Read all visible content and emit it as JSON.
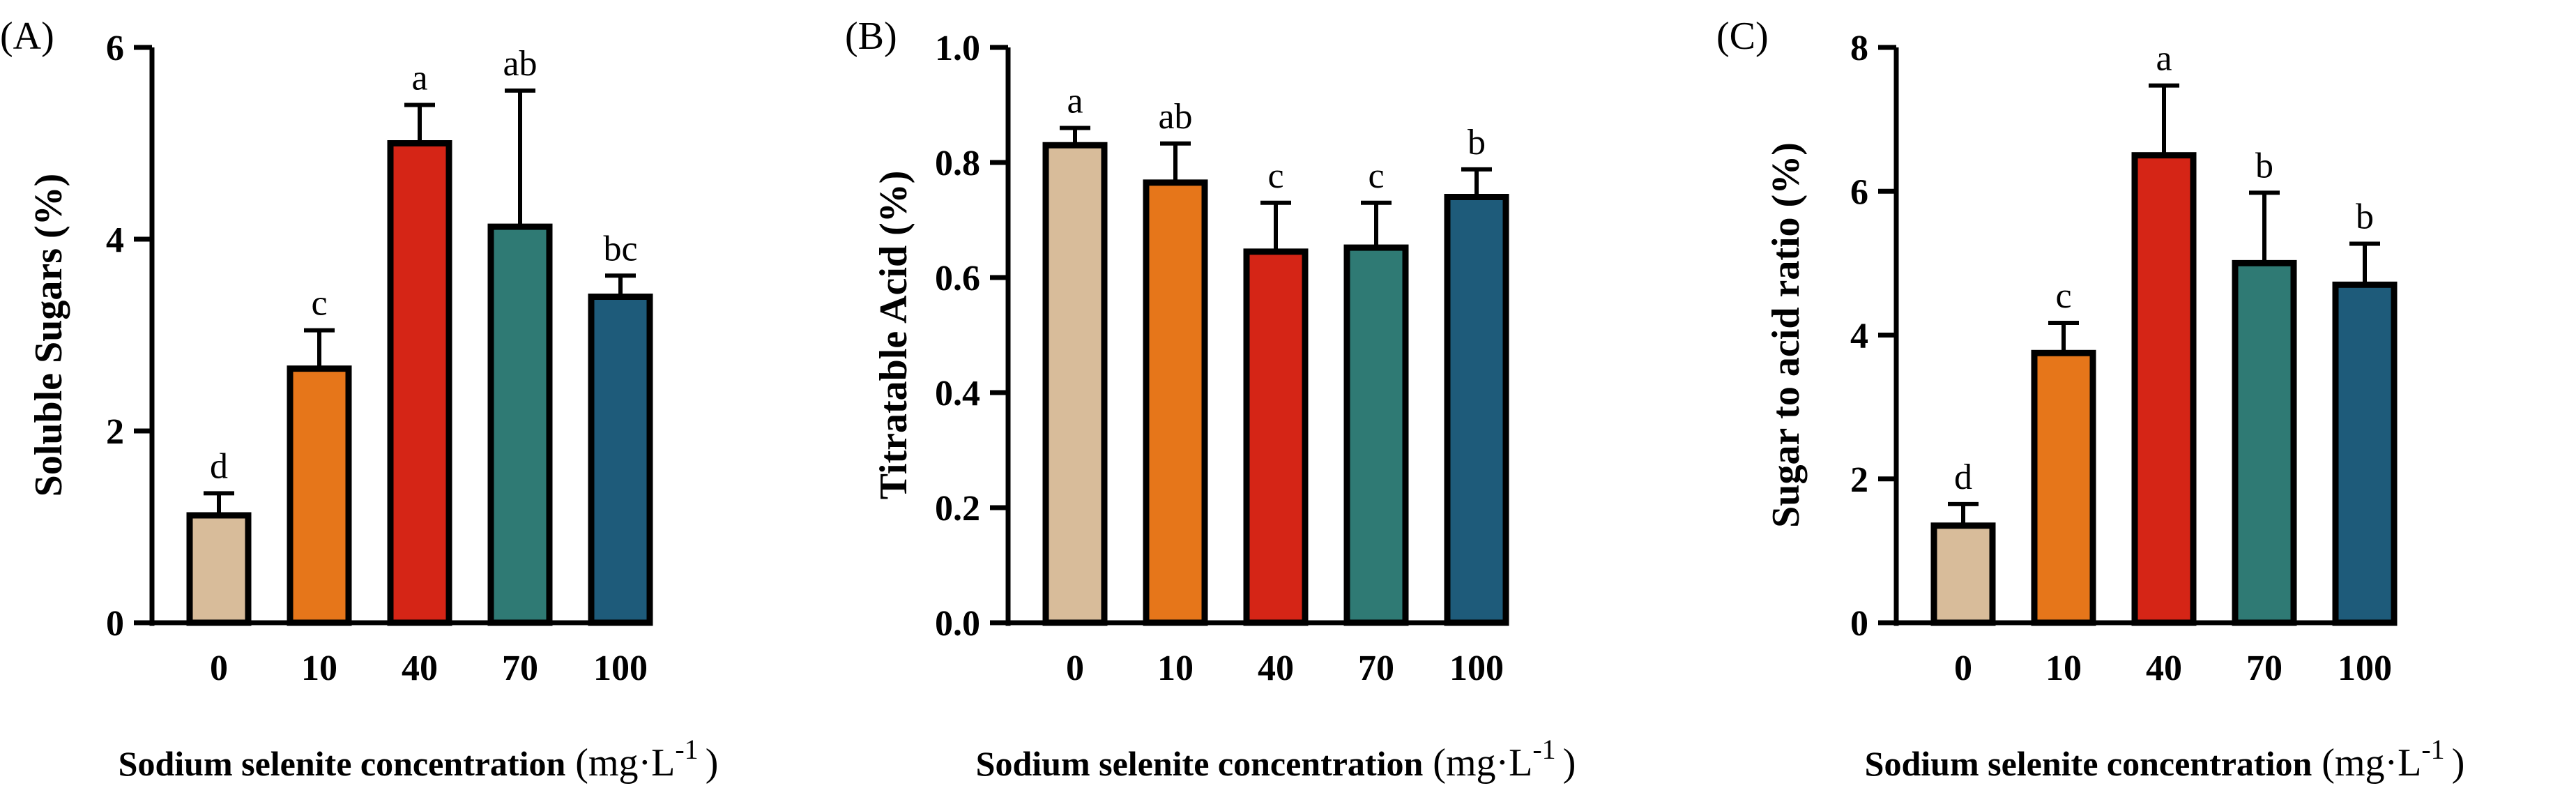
{
  "chart_data": [
    {
      "type": "bar",
      "panel": "(A)",
      "categories": [
        "0",
        "10",
        "40",
        "70",
        "100"
      ],
      "values": [
        1.12,
        2.65,
        5.0,
        4.13,
        3.4
      ],
      "errors": [
        0.23,
        0.4,
        0.4,
        1.42,
        0.22
      ],
      "letters": [
        "d",
        "c",
        "a",
        "ab",
        "bc"
      ],
      "ylabel": "Soluble Sugars (%)",
      "xlabel": "Sodium selenite concentration",
      "xunit_base": "(mg·L",
      "xunit_exp": "-1",
      "xunit_close": ")",
      "ylim": [
        0,
        6
      ],
      "yticks": [
        0,
        2,
        4,
        6
      ],
      "ytick_labels": [
        "0",
        "2",
        "4",
        "6"
      ]
    },
    {
      "type": "bar",
      "panel": "(B)",
      "categories": [
        "0",
        "10",
        "40",
        "70",
        "100"
      ],
      "values": [
        0.83,
        0.765,
        0.645,
        0.652,
        0.74
      ],
      "errors": [
        0.03,
        0.068,
        0.085,
        0.078,
        0.048
      ],
      "letters": [
        "a",
        "ab",
        "c",
        "c",
        "b"
      ],
      "ylabel": "Titratable Acid (%)",
      "xlabel": "Sodium selenite concentration",
      "xunit_base": "(mg·L",
      "xunit_exp": "-1",
      "xunit_close": ")",
      "ylim": [
        0,
        1.0
      ],
      "yticks": [
        0,
        0.2,
        0.4,
        0.6,
        0.8,
        1.0
      ],
      "ytick_labels": [
        "0.0",
        "0.2",
        "0.4",
        "0.6",
        "0.8",
        "1.0"
      ]
    },
    {
      "type": "bar",
      "panel": "(C)",
      "categories": [
        "0",
        "10",
        "40",
        "70",
        "100"
      ],
      "values": [
        1.35,
        3.75,
        6.5,
        5.0,
        4.7
      ],
      "errors": [
        0.3,
        0.42,
        0.97,
        0.98,
        0.57
      ],
      "letters": [
        "d",
        "c",
        "a",
        "b",
        "b"
      ],
      "ylabel": "Sugar to acid ratio (%)",
      "xlabel": "Sodium selenite concentration",
      "xunit_base": "(mg·L",
      "xunit_exp": "-1",
      "xunit_close": ")",
      "ylim": [
        0,
        8
      ],
      "yticks": [
        0,
        2,
        4,
        6,
        8
      ],
      "ytick_labels": [
        "0",
        "2",
        "4",
        "6",
        "8"
      ]
    }
  ],
  "colors": {
    "bars": [
      "#d8bc9a",
      "#e6761a",
      "#d52516",
      "#2f7a74",
      "#1e5b7a"
    ],
    "outline": "#000000"
  }
}
